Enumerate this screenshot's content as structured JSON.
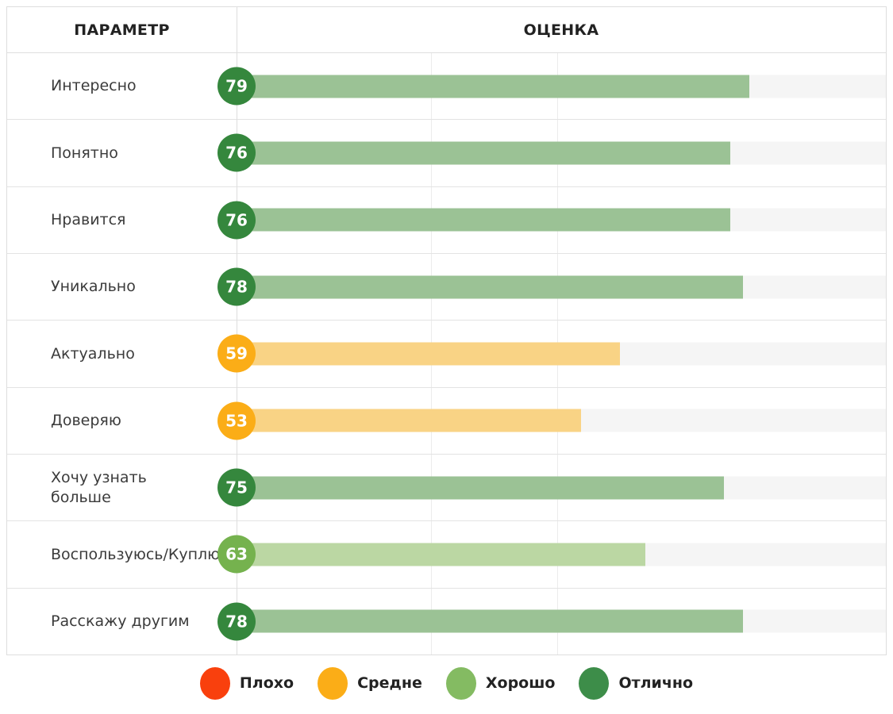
{
  "header": {
    "parameter": "ПАРАМЕТР",
    "score": "ОЦЕНКА"
  },
  "rows": [
    {
      "label": "Интересно",
      "value": 79,
      "level": "excellent"
    },
    {
      "label": "Понятно",
      "value": 76,
      "level": "excellent"
    },
    {
      "label": "Нравится",
      "value": 76,
      "level": "excellent"
    },
    {
      "label": "Уникально",
      "value": 78,
      "level": "excellent"
    },
    {
      "label": "Актуально",
      "value": 59,
      "level": "medium"
    },
    {
      "label": "Доверяю",
      "value": 53,
      "level": "medium"
    },
    {
      "label": "Хочу узнать\nбольше",
      "value": 75,
      "level": "excellent"
    },
    {
      "label": "Воспользуюсь/Куплю",
      "value": 63,
      "level": "good"
    },
    {
      "label": "Расскажу другим",
      "value": 78,
      "level": "excellent"
    }
  ],
  "palette": {
    "excellent": {
      "badge": "#35873D",
      "bar": "#9BC295"
    },
    "good": {
      "badge": "#75B24E",
      "bar": "#BBD7A3"
    },
    "medium": {
      "badge": "#FBAD17",
      "bar": "#F9D385"
    }
  },
  "legend": {
    "items": [
      {
        "label": "Плохо",
        "color": "#F9400D"
      },
      {
        "label": "Средне",
        "color": "#FBAD17"
      },
      {
        "label": "Хорошо",
        "color": "#84BB62"
      },
      {
        "label": "Отлично",
        "color": "#3D8D49"
      }
    ]
  },
  "chart_data": {
    "type": "bar",
    "orientation": "horizontal",
    "categories": [
      "Интересно",
      "Понятно",
      "Нравится",
      "Уникально",
      "Актуально",
      "Доверяю",
      "Хочу узнать больше",
      "Воспользуюсь/Куплю",
      "Расскажу другим"
    ],
    "values": [
      79,
      76,
      76,
      78,
      59,
      53,
      75,
      63,
      78
    ],
    "value_ratings": [
      "Отлично",
      "Отлично",
      "Отлично",
      "Отлично",
      "Средне",
      "Средне",
      "Отлично",
      "Хорошо",
      "Отлично"
    ],
    "title": "",
    "xlabel": "ОЦЕНКА",
    "ylabel": "ПАРАМЕТР",
    "xlim": [
      0,
      100
    ],
    "grid": true,
    "legend_entries": [
      "Плохо",
      "Средне",
      "Хорошо",
      "Отлично"
    ],
    "legend_position": "bottom"
  }
}
